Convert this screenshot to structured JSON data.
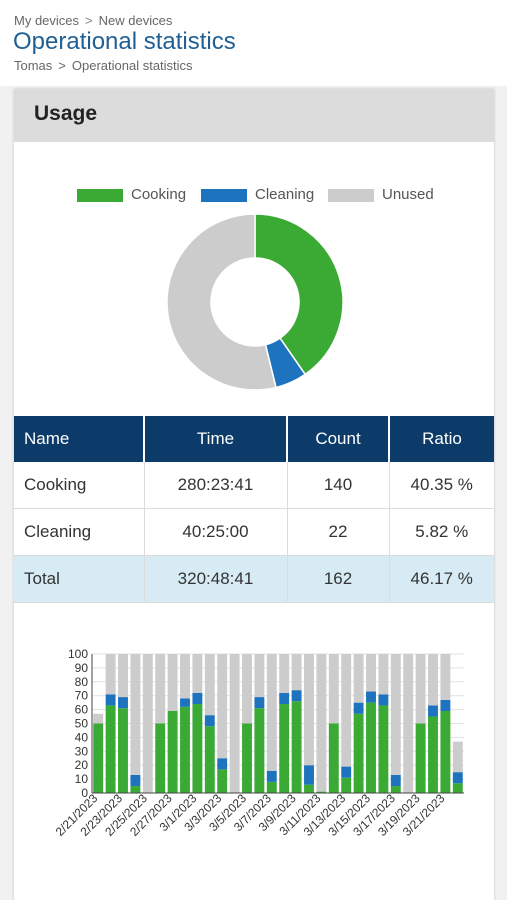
{
  "header": {
    "breadcrumb_top": [
      "My devices",
      "New devices"
    ],
    "breadcrumb_sep": ">",
    "title": "Operational statistics",
    "breadcrumb_bottom": [
      "Tomas",
      "Operational statistics"
    ]
  },
  "panel": {
    "title": "Usage"
  },
  "colors": {
    "cooking": "#3aaa35",
    "cleaning": "#1e73be",
    "unused": "#cccccc",
    "table_header": "#0c3b69",
    "total_row": "#d7ebf5",
    "title": "#1f5f94"
  },
  "table": {
    "columns": [
      "Name",
      "Time",
      "Count",
      "Ratio"
    ],
    "rows": [
      {
        "name": "Cooking",
        "time": "280:23:41",
        "count": "140",
        "ratio": "40.35 %"
      },
      {
        "name": "Cleaning",
        "time": "40:25:00",
        "count": "22",
        "ratio": "5.82 %"
      },
      {
        "name": "Total",
        "time": "320:48:41",
        "count": "162",
        "ratio": "46.17 %"
      }
    ]
  },
  "chart_data": [
    {
      "type": "pie",
      "legend": [
        "Cooking",
        "Cleaning",
        "Unused"
      ],
      "values": [
        40.35,
        5.82,
        53.83
      ],
      "legend_placement": "top"
    },
    {
      "type": "bar",
      "stacked": true,
      "ylim": [
        0,
        100
      ],
      "yticks": [
        0,
        10,
        20,
        30,
        40,
        50,
        60,
        70,
        80,
        90,
        100
      ],
      "grid": true,
      "categories": [
        "2/21/2023",
        "2/22/2023",
        "2/23/2023",
        "2/24/2023",
        "2/25/2023",
        "2/26/2023",
        "2/27/2023",
        "2/28/2023",
        "3/1/2023",
        "3/2/2023",
        "3/3/2023",
        "3/4/2023",
        "3/5/2023",
        "3/6/2023",
        "3/7/2023",
        "3/8/2023",
        "3/9/2023",
        "3/10/2023",
        "3/11/2023",
        "3/12/2023",
        "3/13/2023",
        "3/14/2023",
        "3/15/2023",
        "3/16/2023",
        "3/17/2023",
        "3/18/2023",
        "3/19/2023",
        "3/20/2023",
        "3/21/2023",
        "3/22/2023"
      ],
      "x_tick_labels": [
        "2/21/2023",
        "2/23/2023",
        "2/25/2023",
        "2/27/2023",
        "3/1/2023",
        "3/3/2023",
        "3/5/2023",
        "3/7/2023",
        "3/9/2023",
        "3/11/2023",
        "3/13/2023",
        "3/15/2023",
        "3/17/2023",
        "3/19/2023",
        "3/21/2023"
      ],
      "series": [
        {
          "name": "Cooking",
          "values": [
            50,
            63,
            61,
            5,
            0,
            50,
            59,
            62,
            64,
            48,
            17,
            0,
            50,
            61,
            8,
            64,
            66,
            6,
            1,
            50,
            11,
            57,
            65,
            63,
            5,
            0,
            50,
            55,
            59,
            7
          ]
        },
        {
          "name": "Cleaning",
          "values": [
            0,
            8,
            8,
            8,
            0,
            0,
            0,
            6,
            8,
            8,
            8,
            0,
            0,
            8,
            8,
            8,
            8,
            14,
            0,
            0,
            8,
            8,
            8,
            8,
            8,
            0,
            0,
            8,
            8,
            8
          ]
        },
        {
          "name": "Unused",
          "values": [
            7,
            29,
            31,
            87,
            100,
            50,
            41,
            32,
            28,
            44,
            75,
            100,
            50,
            31,
            84,
            28,
            26,
            80,
            99,
            50,
            81,
            35,
            27,
            29,
            87,
            100,
            50,
            37,
            33,
            22
          ]
        }
      ]
    }
  ]
}
